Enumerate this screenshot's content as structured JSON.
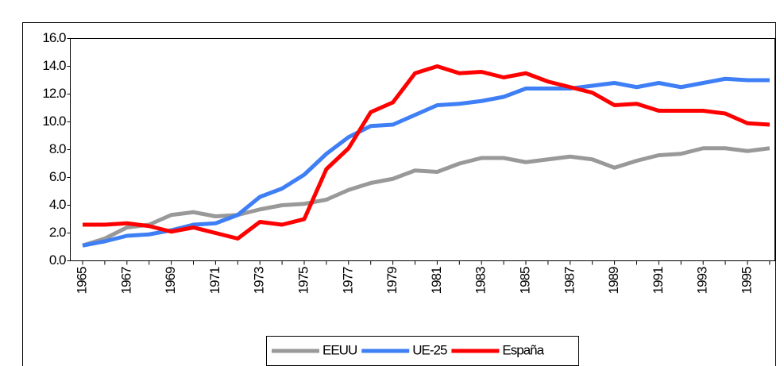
{
  "chart_data": {
    "type": "line",
    "categories": [
      "1965",
      null,
      "1967",
      null,
      "1969",
      null,
      "1971",
      null,
      "1973",
      null,
      "1975",
      null,
      "1977",
      null,
      "1979",
      null,
      "1981",
      null,
      "1983",
      null,
      "1985",
      null,
      "1987",
      null,
      "1989",
      null,
      "1991",
      null,
      "1993",
      null,
      "1995",
      null
    ],
    "series": [
      {
        "name": "EEUU",
        "color": "#999999",
        "values": [
          1.1,
          1.6,
          2.4,
          2.6,
          3.3,
          3.5,
          3.2,
          3.3,
          3.7,
          4.0,
          4.1,
          4.4,
          5.1,
          5.6,
          5.9,
          6.5,
          6.4,
          7.0,
          7.4,
          7.4,
          7.1,
          7.3,
          7.5,
          7.3,
          6.7,
          7.2,
          7.6,
          7.7,
          8.1,
          8.1,
          7.9,
          8.1
        ]
      },
      {
        "name": "UE-25",
        "color": "#3f7ff5",
        "values": [
          1.1,
          1.4,
          1.8,
          1.9,
          2.2,
          2.6,
          2.7,
          3.3,
          4.6,
          5.2,
          6.2,
          7.7,
          8.9,
          9.7,
          9.8,
          10.5,
          11.2,
          11.3,
          11.5,
          11.8,
          12.4,
          12.4,
          12.4,
          12.6,
          12.8,
          12.5,
          12.8,
          12.5,
          12.8,
          13.1,
          13.0,
          13.0
        ]
      },
      {
        "name": "España",
        "color": "#ff0000",
        "values": [
          2.6,
          2.6,
          2.7,
          2.5,
          2.1,
          2.4,
          2.0,
          1.6,
          2.8,
          2.6,
          3.0,
          6.6,
          8.1,
          10.7,
          11.4,
          13.5,
          14.0,
          13.5,
          13.6,
          13.2,
          13.5,
          12.9,
          12.5,
          12.1,
          11.2,
          11.3,
          10.8,
          10.8,
          10.8,
          10.6,
          9.9,
          9.8
        ]
      }
    ],
    "ylim": [
      0,
      16
    ],
    "yticks": [
      {
        "value": 0,
        "label": "0.0"
      },
      {
        "value": 2,
        "label": "2.0"
      },
      {
        "value": 4,
        "label": "4.0"
      },
      {
        "value": 6,
        "label": "6.0"
      },
      {
        "value": 8,
        "label": "8.0"
      },
      {
        "value": 10,
        "label": "10.0"
      },
      {
        "value": 12,
        "label": "12.0"
      },
      {
        "value": 14,
        "label": "14.0"
      },
      {
        "value": 16,
        "label": "16.0"
      }
    ],
    "grid": false,
    "legend": "bottom"
  }
}
